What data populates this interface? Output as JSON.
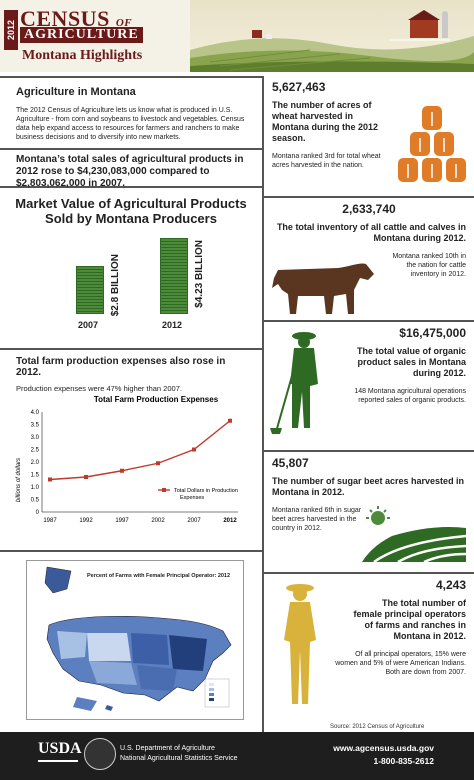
{
  "header": {
    "year": "2012",
    "census": "CENSUS",
    "of": "OF",
    "agriculture": "AGRICULTURE",
    "highlights": "Montana Highlights"
  },
  "intro": {
    "title": "Agriculture in Montana",
    "text": "The 2012 Census of Agriculture lets us know what is produced in U.S. Agriculture - from corn and soybeans to livestock and vegetables. Census data help expand access to resources for farmers and ranchers to make business decisions and to diversify into new markets."
  },
  "sales_text": "Montana’s total sales of agricultural products in 2012 rose to $4,230,083,000 compared to $2,803,062,000 in 2007.",
  "market_value": {
    "title": "Market Value of Agricultural Products Sold by Montana Producers",
    "bars": [
      {
        "year": "2007",
        "label": "$2.8 BILLION",
        "value": 2.8
      },
      {
        "year": "2012",
        "label": "$4.23 BILLION",
        "value": 4.23
      }
    ]
  },
  "expenses": {
    "title": "Total farm production expenses also rose in 2012.",
    "subtitle": "Production expenses were 47% higher than 2007."
  },
  "chart_data": {
    "type": "line",
    "title": "Total Farm Production Expenses",
    "ylabel": "billions of dollars",
    "xlabel": "",
    "x": [
      "1987",
      "1992",
      "1997",
      "2002",
      "2007",
      "2012"
    ],
    "series": [
      {
        "name": "Total Dollars in Production Expenses",
        "values": [
          1.3,
          1.4,
          1.65,
          1.95,
          2.5,
          3.65
        ],
        "color": "#c0392b"
      }
    ],
    "ylim": [
      0,
      4.0
    ],
    "yticks": [
      "0",
      "0.5",
      "1.0",
      "1.5",
      "2.0",
      "2.5",
      "3.0",
      "3.5",
      "4.0"
    ],
    "legend": "bottom-right",
    "grid": false
  },
  "map": {
    "title": "Percent of Farms with Female Principal Operator: 2012"
  },
  "stats": [
    {
      "number": "5,627,463",
      "desc": "The number of acres of wheat harvested in Montana during the 2012 season.",
      "note": "Montana ranked 3rd for total wheat acres harvested in the nation."
    },
    {
      "number": "2,633,740",
      "desc": "The total inventory of all cattle and calves in Montana during 2012.",
      "note": "Montana ranked 10th in the nation for cattle inventory in 2012."
    },
    {
      "number": "$16,475,000",
      "desc": "The total value of organic product sales in Montana during 2012.",
      "note": "148 Montana agricultural operations reported sales of organic products."
    },
    {
      "number": "45,807",
      "desc": "The number of sugar beet acres harvested in Montana in 2012.",
      "note": "Montana ranked 6th in sugar beet acres harvested in the country in 2012."
    },
    {
      "number": "4,243",
      "desc": "The total number of female principal operators of farms and ranches in Montana in 2012.",
      "note": "Of all principal operators, 15% were women and 5% of were American Indians. Both are down from 2007."
    }
  ],
  "source": "Source:  2012 Census of Agriculture",
  "footer": {
    "usda": "USDA",
    "dept1": "U.S. Department of Agriculture",
    "dept2": "National Agricultural Statistics Service",
    "website": "www.agcensus.usda.gov",
    "phone": "1-800-835-2612"
  },
  "colors": {
    "maroon": "#6b1a1a",
    "green": "#2f6a24",
    "orange": "#e07b28",
    "brown": "#5a3520",
    "gold": "#d9b23c"
  }
}
